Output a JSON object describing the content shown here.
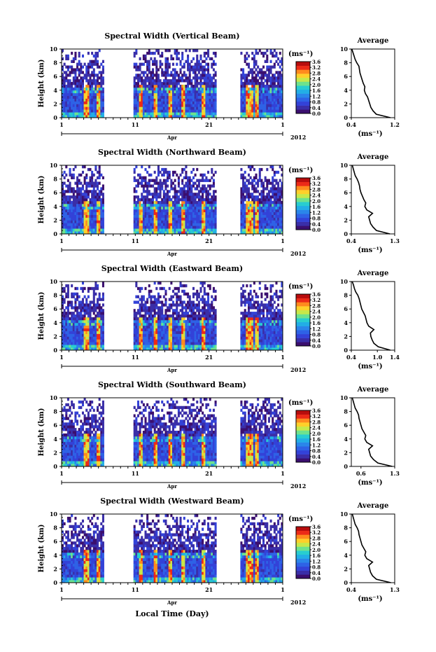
{
  "figure": {
    "xlabel": "Local Time (Day)",
    "month_label": "Apr",
    "year_label": "2012",
    "unit_label": "(ms⁻¹)",
    "avg_xlabel": "(ms⁻¹)",
    "colors": [
      "#3b0f6f",
      "#3a2ea8",
      "#3342d8",
      "#2e62e6",
      "#2a86ea",
      "#22aee6",
      "#28cdd0",
      "#6ee28d",
      "#c7e84a",
      "#ffd02a",
      "#ff8a1e",
      "#ec2a18",
      "#b80d0d"
    ]
  },
  "chart_data": [
    {
      "type": "heatmap",
      "title": "Spectral Width (Vertical Beam)",
      "ylabel": "Height (km)",
      "xlim": [
        1,
        31
      ],
      "x_ticks": [
        "1",
        "11",
        "21",
        "1"
      ],
      "ylim": [
        0,
        10
      ],
      "y_ticks": [
        "0",
        "2",
        "4",
        "6",
        "8",
        "10"
      ],
      "data_gaps": [
        [
          6.8,
          10.7
        ],
        [
          22.1,
          25.2
        ]
      ],
      "colorbar": {
        "min": 0,
        "max": 3.6,
        "ticks": [
          "0.0",
          "0.4",
          "0.8",
          "1.2",
          "1.6",
          "2.0",
          "2.4",
          "2.8",
          "3.2",
          "3.6"
        ]
      },
      "average": {
        "title": "Average",
        "xlim": [
          0.4,
          1.2
        ],
        "x_ticks": [
          "0.4",
          "1.2"
        ],
        "ylim": [
          0,
          10
        ],
        "y_ticks": [
          "0",
          "2",
          "4",
          "6",
          "8",
          "10"
        ],
        "height": [
          0,
          0.5,
          1,
          1.5,
          2,
          2.5,
          3,
          3.5,
          4,
          4.5,
          5,
          5.5,
          6,
          6.5,
          7,
          7.5,
          8,
          8.5,
          9,
          9.5,
          10
        ],
        "width": [
          1.12,
          0.86,
          0.8,
          0.76,
          0.74,
          0.72,
          0.7,
          0.66,
          0.64,
          0.65,
          0.62,
          0.6,
          0.58,
          0.56,
          0.55,
          0.54,
          0.5,
          0.47,
          0.45,
          0.43,
          0.41
        ]
      }
    },
    {
      "type": "heatmap",
      "title": "Spectral Width (Northward Beam)",
      "ylabel": "Height (km)",
      "xlim": [
        1,
        31
      ],
      "x_ticks": [
        "1",
        "11",
        "21",
        "1"
      ],
      "ylim": [
        0,
        10
      ],
      "y_ticks": [
        "0",
        "2",
        "4",
        "6",
        "8",
        "10"
      ],
      "data_gaps": [
        [
          6.8,
          10.7
        ],
        [
          22.1,
          25.2
        ]
      ],
      "colorbar": {
        "min": 0,
        "max": 3.6,
        "ticks": [
          "0.0",
          "0.4",
          "0.8",
          "1.2",
          "1.6",
          "2.0",
          "2.4",
          "2.8",
          "3.2",
          "3.6"
        ]
      },
      "average": {
        "title": "Average",
        "xlim": [
          0.4,
          1.3
        ],
        "x_ticks": [
          "0.4",
          "1.3"
        ],
        "ylim": [
          0,
          10
        ],
        "y_ticks": [
          "0",
          "2",
          "4",
          "6",
          "8",
          "10"
        ],
        "height": [
          0,
          0.5,
          1,
          1.5,
          2,
          2.5,
          3,
          3.5,
          4,
          4.5,
          5,
          5.5,
          6,
          6.5,
          7,
          7.5,
          8,
          8.5,
          9,
          9.5,
          10
        ],
        "width": [
          1.2,
          0.92,
          0.85,
          0.8,
          0.78,
          0.76,
          0.84,
          0.72,
          0.68,
          0.7,
          0.66,
          0.63,
          0.6,
          0.58,
          0.57,
          0.55,
          0.52,
          0.48,
          0.46,
          0.44,
          0.42
        ]
      }
    },
    {
      "type": "heatmap",
      "title": "Spectral Width (Eastward Beam)",
      "ylabel": "Height (km)",
      "xlim": [
        1,
        31
      ],
      "x_ticks": [
        "1",
        "11",
        "21",
        "1"
      ],
      "ylim": [
        0,
        10
      ],
      "y_ticks": [
        "0",
        "2",
        "4",
        "6",
        "8",
        "10"
      ],
      "data_gaps": [
        [
          6.8,
          10.7
        ],
        [
          22.1,
          25.2
        ]
      ],
      "colorbar": {
        "min": 0,
        "max": 3.6,
        "ticks": [
          "0.0",
          "0.4",
          "0.8",
          "1.2",
          "1.6",
          "2.0",
          "2.4",
          "2.8",
          "3.2",
          "3.6"
        ]
      },
      "average": {
        "title": "Average",
        "xlim": [
          0.4,
          1.4
        ],
        "x_ticks": [
          "0.4",
          "1.0",
          "1.4"
        ],
        "ylim": [
          0,
          10
        ],
        "y_ticks": [
          "0",
          "2",
          "4",
          "6",
          "8",
          "10"
        ],
        "height": [
          0,
          0.5,
          1,
          1.5,
          2,
          2.5,
          3,
          3.5,
          4,
          4.5,
          5,
          5.5,
          6,
          6.5,
          7,
          7.5,
          8,
          8.5,
          9,
          9.5,
          10
        ],
        "width": [
          1.3,
          1.02,
          0.92,
          0.88,
          0.85,
          0.84,
          0.92,
          0.8,
          0.76,
          0.74,
          0.72,
          0.68,
          0.64,
          0.62,
          0.6,
          0.58,
          0.55,
          0.5,
          0.47,
          0.45,
          0.42
        ]
      }
    },
    {
      "type": "heatmap",
      "title": "Spectral Width (Southward Beam)",
      "ylabel": "Height (km)",
      "xlim": [
        1,
        31
      ],
      "x_ticks": [
        "1",
        "11",
        "21",
        "1"
      ],
      "ylim": [
        0,
        10
      ],
      "y_ticks": [
        "0",
        "2",
        "4",
        "6",
        "8",
        "10"
      ],
      "data_gaps": [
        [
          6.8,
          10.7
        ],
        [
          22.1,
          25.2
        ]
      ],
      "colorbar": {
        "min": 0,
        "max": 3.6,
        "ticks": [
          "0.0",
          "0.4",
          "0.8",
          "1.2",
          "1.6",
          "2.0",
          "2.4",
          "2.8",
          "3.2",
          "3.6"
        ]
      },
      "average": {
        "title": "Average",
        "xlim": [
          0.4,
          1.3
        ],
        "x_ticks": [
          "0.6",
          "1.3"
        ],
        "ylim": [
          0,
          10
        ],
        "y_ticks": [
          "0",
          "2",
          "4",
          "6",
          "8",
          "10"
        ],
        "height": [
          0,
          0.5,
          1,
          1.5,
          2,
          2.5,
          3,
          3.5,
          4,
          4.5,
          5,
          5.5,
          6,
          6.5,
          7,
          7.5,
          8,
          8.5,
          9,
          9.5,
          10
        ],
        "width": [
          1.25,
          0.95,
          0.86,
          0.8,
          0.78,
          0.76,
          0.84,
          0.72,
          0.68,
          0.7,
          0.66,
          0.62,
          0.6,
          0.58,
          0.56,
          0.55,
          0.52,
          0.48,
          0.46,
          0.44,
          0.42
        ]
      }
    },
    {
      "type": "heatmap",
      "title": "Spectral Width (Westward Beam)",
      "ylabel": "Height (km)",
      "xlim": [
        1,
        31
      ],
      "x_ticks": [
        "1",
        "11",
        "21",
        "1"
      ],
      "ylim": [
        0,
        10
      ],
      "y_ticks": [
        "0",
        "2",
        "4",
        "6",
        "8",
        "10"
      ],
      "data_gaps": [
        [
          6.8,
          10.7
        ],
        [
          22.1,
          25.2
        ]
      ],
      "colorbar": {
        "min": 0,
        "max": 3.6,
        "ticks": [
          "0.0",
          "0.4",
          "0.8",
          "1.2",
          "1.6",
          "2.0",
          "2.4",
          "2.8",
          "3.2",
          "3.6"
        ]
      },
      "average": {
        "title": "Average",
        "xlim": [
          0.4,
          1.3
        ],
        "x_ticks": [
          "0.4",
          "1.3"
        ],
        "ylim": [
          0,
          10
        ],
        "y_ticks": [
          "0",
          "2",
          "4",
          "6",
          "8",
          "10"
        ],
        "height": [
          0,
          0.5,
          1,
          1.5,
          2,
          2.5,
          3,
          3.5,
          4,
          4.5,
          5,
          5.5,
          6,
          6.5,
          7,
          7.5,
          8,
          8.5,
          9,
          9.5,
          10
        ],
        "width": [
          1.22,
          0.92,
          0.84,
          0.8,
          0.78,
          0.76,
          0.84,
          0.72,
          0.68,
          0.7,
          0.66,
          0.62,
          0.6,
          0.58,
          0.56,
          0.55,
          0.52,
          0.48,
          0.46,
          0.44,
          0.42
        ]
      }
    }
  ]
}
